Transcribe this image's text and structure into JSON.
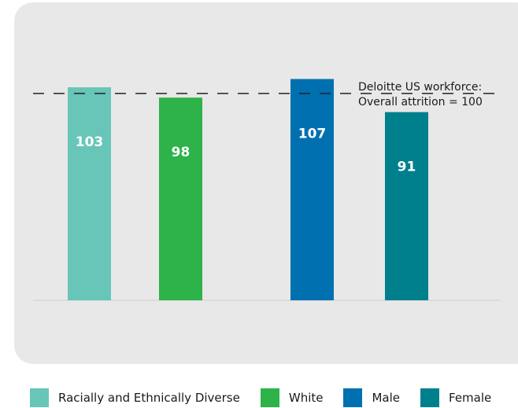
{
  "chart_data": {
    "type": "bar",
    "categories": [
      "Racially and Ethnically Diverse",
      "White",
      "Male",
      "Female"
    ],
    "values": [
      103,
      98,
      107,
      91
    ],
    "colors": [
      "#67c6b7",
      "#2db34a",
      "#0070b0",
      "#00808c"
    ],
    "value_labels": [
      "103",
      "98",
      "107",
      "91"
    ],
    "reference_line": {
      "value": 100,
      "style": "dashed"
    },
    "annotation": [
      "Deloitte US workforce:",
      "Overall attrition = 100"
    ],
    "legend": {
      "placement": "bottom",
      "items": [
        {
          "label": "Racially and Ethnically Diverse",
          "color": "#67c6b7"
        },
        {
          "label": "White",
          "color": "#2db34a"
        },
        {
          "label": "Male",
          "color": "#0070b0"
        },
        {
          "label": "Female",
          "color": "#00808c"
        }
      ]
    },
    "ylim": [
      0,
      130
    ],
    "grid": false
  }
}
